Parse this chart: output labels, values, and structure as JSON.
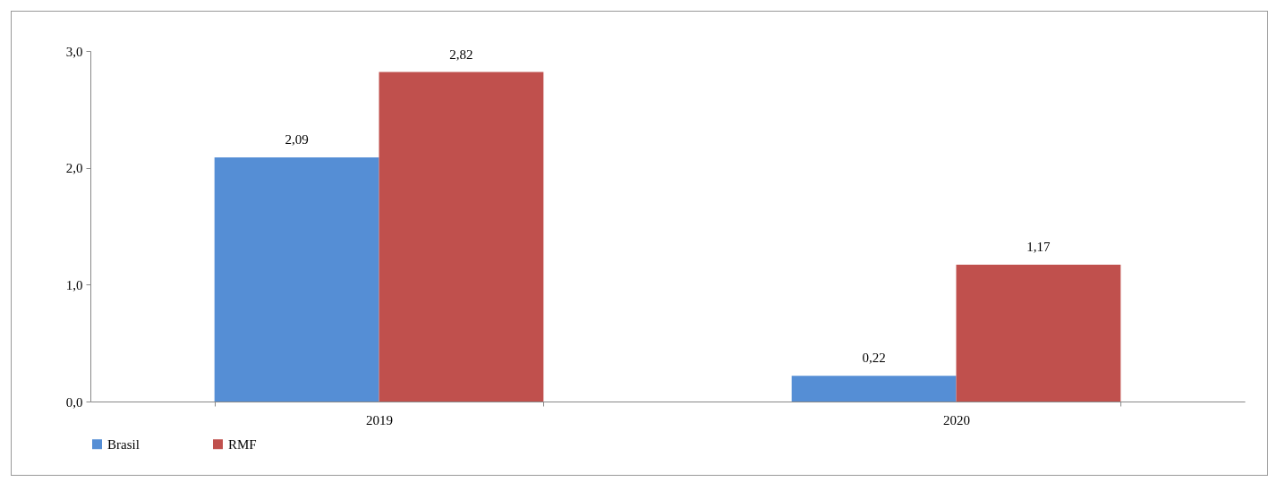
{
  "chart_data": {
    "type": "bar",
    "categories": [
      "2019",
      "2020"
    ],
    "series": [
      {
        "name": "Brasil",
        "color": "#558ed5",
        "values": [
          2.09,
          0.22
        ],
        "value_labels": [
          "2,09",
          "0,22"
        ]
      },
      {
        "name": "RMF",
        "color": "#c0504d",
        "values": [
          2.82,
          1.17
        ],
        "value_labels": [
          "2,82",
          "1,17"
        ]
      }
    ],
    "ylim": [
      0,
      3
    ],
    "yticks": [
      {
        "value": 0,
        "label": "0,0"
      },
      {
        "value": 1,
        "label": "1,0"
      },
      {
        "value": 2,
        "label": "2,0"
      },
      {
        "value": 3,
        "label": "3,0"
      }
    ],
    "grid": false,
    "legend": "bottom"
  }
}
